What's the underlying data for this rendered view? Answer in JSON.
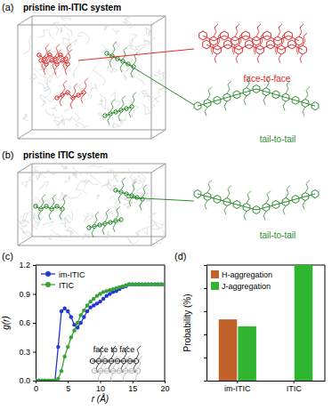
{
  "figure": {
    "panel_a": {
      "label": "(a)",
      "title": "pristine im-ITIC system",
      "insets": [
        {
          "label": "face-to-face",
          "color": "#e02828"
        },
        {
          "label": "tail-to-tail",
          "color": "#2e8b2e"
        }
      ]
    },
    "panel_b": {
      "label": "(b)",
      "title": "pristine ITIC system",
      "insets": [
        {
          "label": "tail-to-tail",
          "color": "#2e8b2e"
        }
      ]
    }
  },
  "chart_data": [
    {
      "type": "line",
      "title": "(c)",
      "x_label": "r (Å)",
      "y_label": "g(r)",
      "x": [
        0,
        0.5,
        1,
        1.5,
        2,
        2.5,
        3,
        3.5,
        4,
        4.5,
        5,
        5.5,
        6,
        6.5,
        7,
        7.5,
        8,
        8.5,
        9,
        9.5,
        10,
        10.5,
        11,
        11.5,
        12,
        12.5,
        13,
        13.5,
        14,
        14.5,
        15,
        15.5,
        16,
        16.5,
        17,
        17.5,
        18,
        18.5,
        19,
        19.5,
        20
      ],
      "series": [
        {
          "name": "im-ITIC",
          "color": "#2436d6",
          "marker": "circle",
          "values": [
            0,
            0,
            0,
            0,
            0,
            0,
            0,
            0.35,
            0.72,
            0.75,
            0.72,
            0.66,
            0.58,
            0.55,
            0.6,
            0.66,
            0.72,
            0.76,
            0.78,
            0.8,
            0.82,
            0.85,
            0.88,
            0.9,
            0.92,
            0.93,
            0.95,
            0.97,
            0.98,
            1.0,
            1.0,
            1.0,
            1.0,
            1.0,
            1.0,
            1.0,
            1.0,
            1.0,
            1.0,
            1.0,
            1.0
          ]
        },
        {
          "name": "ITIC",
          "color": "#36a336",
          "marker": "circle",
          "values": [
            0,
            0,
            0,
            0,
            0,
            0,
            0,
            0.02,
            0.1,
            0.25,
            0.35,
            0.45,
            0.52,
            0.6,
            0.68,
            0.73,
            0.78,
            0.82,
            0.85,
            0.88,
            0.9,
            0.92,
            0.93,
            0.94,
            0.95,
            0.96,
            0.97,
            0.98,
            0.99,
            1.0,
            1.0,
            1.0,
            1.0,
            1.0,
            1.0,
            1.0,
            1.0,
            1.0,
            1.0,
            1.0,
            1.0
          ]
        }
      ],
      "xlim": [
        0,
        20
      ],
      "xticks": [
        0,
        5,
        10,
        15,
        20
      ],
      "ylim": [
        0,
        1.2
      ],
      "yticks": [
        {
          "value": 0,
          "label": "0.0"
        },
        0.3,
        0.6,
        0.9,
        1.2
      ],
      "legend": "upper left",
      "annotations": [
        "face to face"
      ]
    },
    {
      "type": "bar",
      "title": "(d)",
      "y_label": "Probability (%)",
      "categories": [
        "im-ITIC",
        "ITIC"
      ],
      "series": [
        {
          "name": "H-aggregation",
          "color": "#c0622a",
          "values": [
            53,
            0
          ]
        },
        {
          "name": "J-aggregation",
          "color": "#2fb52f",
          "values": [
            47,
            100
          ]
        }
      ],
      "ylim": [
        0,
        100
      ],
      "yticks": [
        0,
        20,
        40,
        60,
        80,
        100
      ],
      "tick_labels": "x",
      "legend": "upper left"
    }
  ]
}
